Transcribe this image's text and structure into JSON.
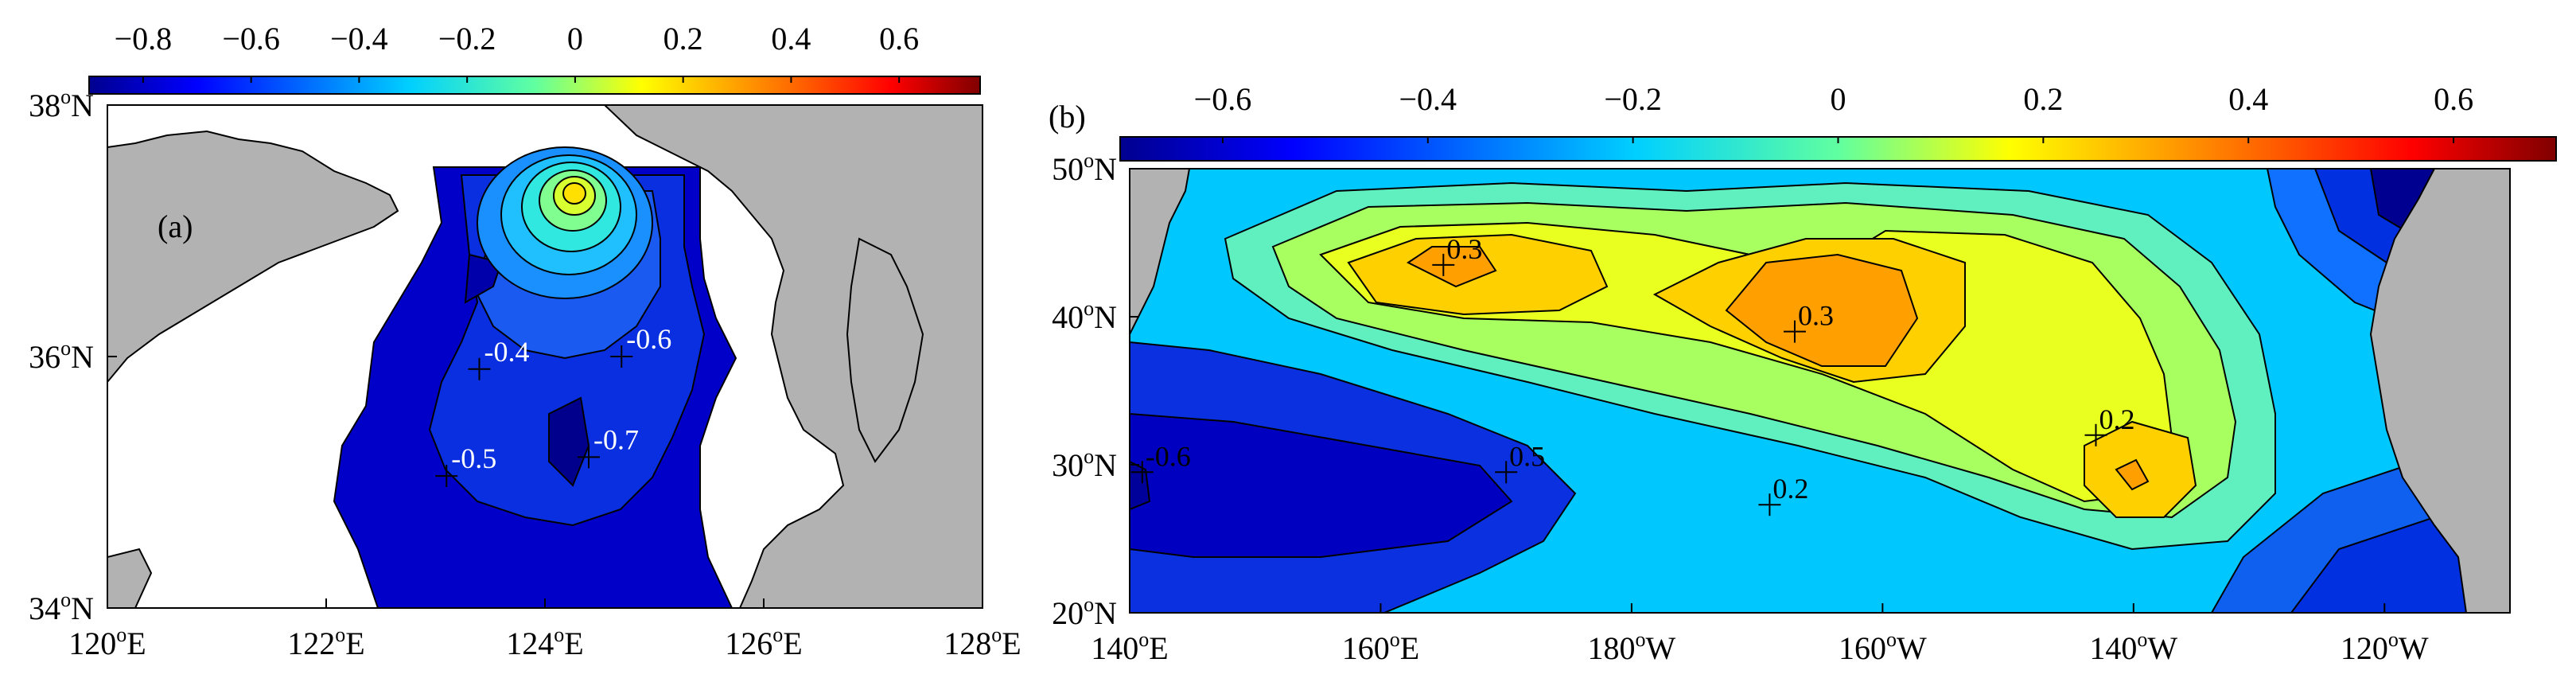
{
  "panels": [
    {
      "label": "(a)",
      "colorbar": {
        "ticks": [
          "−0.8",
          "−0.6",
          "−0.4",
          "−0.2",
          "0",
          "0.2",
          "0.4",
          "0.6"
        ],
        "min": -0.9,
        "max": 0.75
      },
      "lon_ticks": [
        "120",
        "122",
        "124",
        "126",
        "128"
      ],
      "lon_suffix": "E",
      "lat_ticks": [
        "34",
        "36",
        "38"
      ],
      "lat_suffix": "N",
      "markers": [
        {
          "text": "-0.4",
          "lon": 123.4,
          "lat": 35.9
        },
        {
          "text": "-0.6",
          "lon": 124.7,
          "lat": 36.0
        },
        {
          "text": "-0.5",
          "lon": 123.1,
          "lat": 35.05
        },
        {
          "text": "-0.7",
          "lon": 124.4,
          "lat": 35.2
        }
      ]
    },
    {
      "label": "(b)",
      "colorbar": {
        "ticks": [
          "−0.6",
          "−0.4",
          "−0.2",
          "0",
          "0.2",
          "0.4",
          "0.6"
        ],
        "min": -0.7,
        "max": 0.7
      },
      "lon_ticks": [
        "140",
        "160",
        "180",
        "160",
        "140",
        "120"
      ],
      "lon_suffix": [
        "E",
        "E",
        "W",
        "W",
        "W",
        "W"
      ],
      "lat_ticks": [
        "20",
        "30",
        "40",
        "50"
      ],
      "lat_suffix": "N",
      "markers": [
        {
          "text": "0.3",
          "lon": 165,
          "lat": 43.5
        },
        {
          "text": "0.3",
          "lon": 193,
          "lat": 39
        },
        {
          "text": "0.2",
          "lon": 217,
          "lat": 32
        },
        {
          "text": "-0.6",
          "lon": 141,
          "lat": 29.5
        },
        {
          "text": "0.5",
          "lon": 170,
          "lat": 29.5
        },
        {
          "text": "0.2",
          "lon": 191,
          "lat": 27.3
        }
      ]
    }
  ],
  "degree_symbol": "o"
}
